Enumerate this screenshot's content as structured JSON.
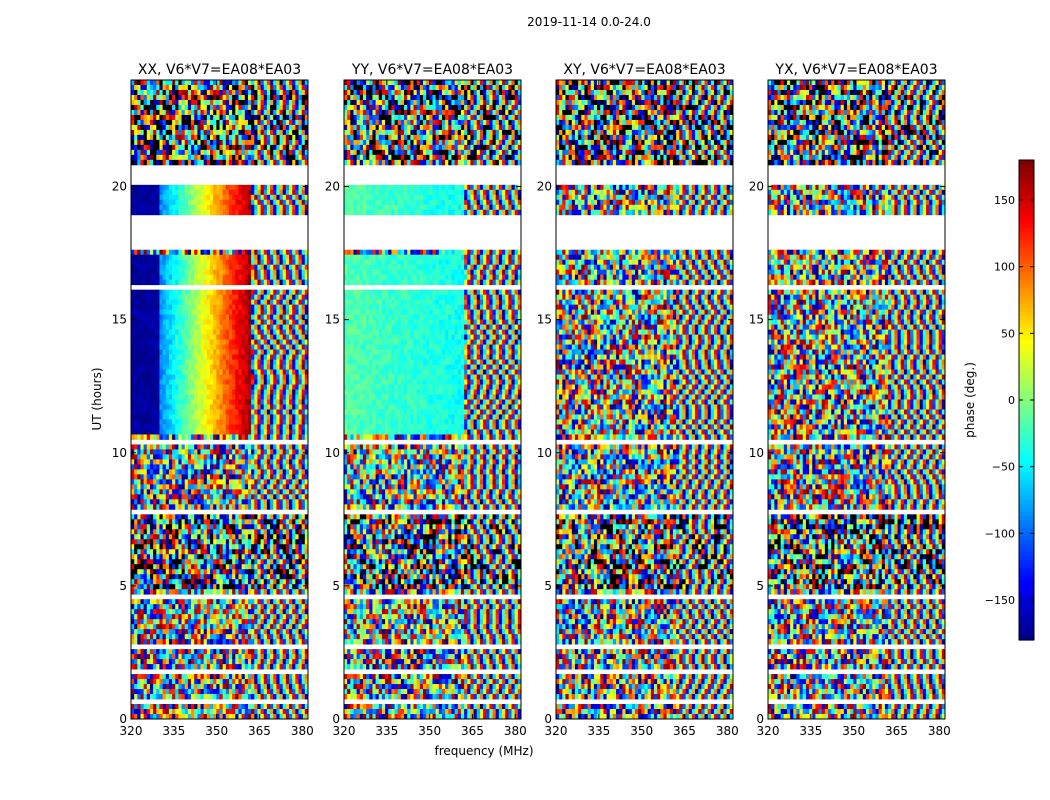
{
  "suptitle": "2019-11-14 0.0-24.0",
  "chart_data": {
    "type": "heatmap",
    "suptitle": "2019-11-14 0.0-24.0",
    "xlabel": "frequency (MHz)",
    "ylabel": "UT (hours)",
    "xlim": [
      320,
      382
    ],
    "ylim": [
      0,
      24
    ],
    "xticks": [
      "320",
      "335",
      "350",
      "365",
      "380"
    ],
    "yticks": [
      "0",
      "5",
      "10",
      "15",
      "20"
    ],
    "colorbar": {
      "label": "phase (deg.)",
      "range": [
        -180,
        180
      ],
      "ticks": [
        "150",
        "100",
        "50",
        "0",
        "−50",
        "−100",
        "−150"
      ],
      "colormap": "jet"
    },
    "panels": [
      {
        "title": "XX, V6*V7=EA08*EA03",
        "pol": "XX",
        "coherent_phase_deg": [
          -170,
          170
        ]
      },
      {
        "title": "YY, V6*V7=EA08*EA03",
        "pol": "YY",
        "coherent_phase_deg": [
          -15,
          -40
        ]
      },
      {
        "title": "XY, V6*V7=EA08*EA03",
        "pol": "XY",
        "coherent_phase_deg": null
      },
      {
        "title": "YX, V6*V7=EA08*EA03",
        "pol": "YX",
        "coherent_phase_deg": null
      }
    ],
    "gaps_ut_hours": [
      [
        0.0,
        0.05
      ],
      [
        0.55,
        0.7
      ],
      [
        1.65,
        1.9
      ],
      [
        2.6,
        2.75
      ],
      [
        4.55,
        4.7
      ],
      [
        7.7,
        7.85
      ],
      [
        10.35,
        10.55
      ],
      [
        16.2,
        16.3
      ],
      [
        17.6,
        18.95
      ],
      [
        20.15,
        20.75
      ]
    ]
  }
}
